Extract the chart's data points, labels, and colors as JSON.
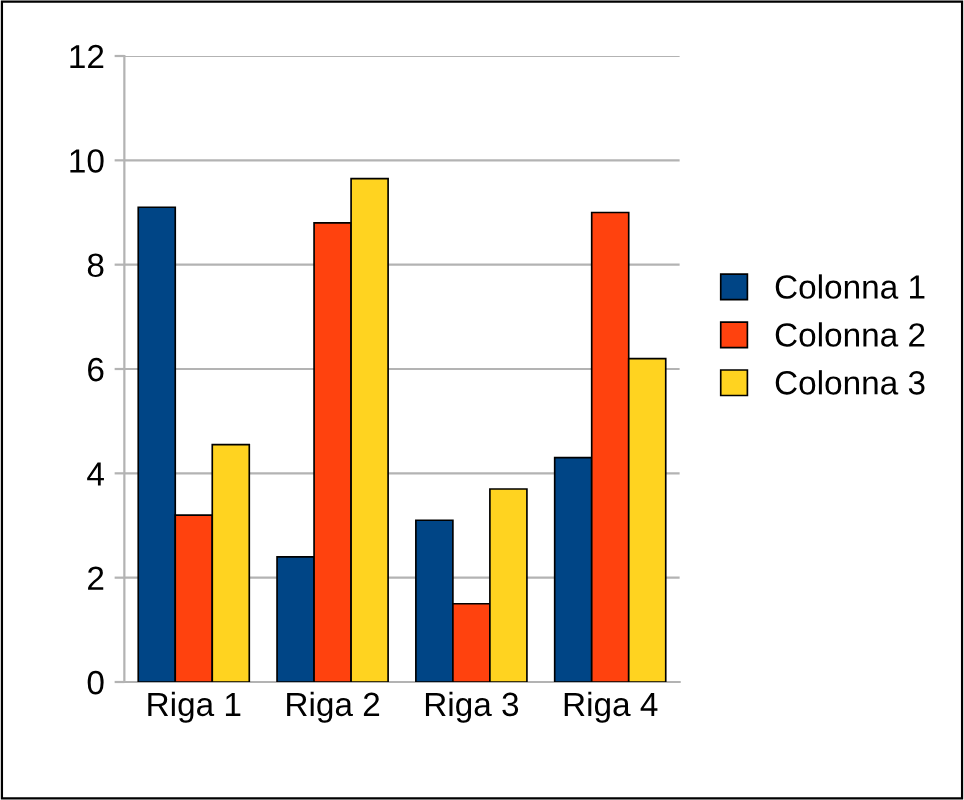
{
  "chart_data": {
    "type": "bar",
    "categories": [
      "Riga 1",
      "Riga 2",
      "Riga 3",
      "Riga 4"
    ],
    "series": [
      {
        "name": "Colonna 1",
        "color": "#004586",
        "values": [
          9.1,
          2.4,
          3.1,
          4.3
        ]
      },
      {
        "name": "Colonna 2",
        "color": "#ff420e",
        "values": [
          3.2,
          8.8,
          1.5,
          9.0
        ]
      },
      {
        "name": "Colonna 3",
        "color": "#ffd320",
        "values": [
          4.55,
          9.65,
          3.7,
          6.2
        ]
      }
    ],
    "ylim": [
      0,
      12
    ],
    "yticks": [
      0,
      2,
      4,
      6,
      8,
      10,
      12
    ],
    "grid": "y",
    "legend": "right"
  }
}
